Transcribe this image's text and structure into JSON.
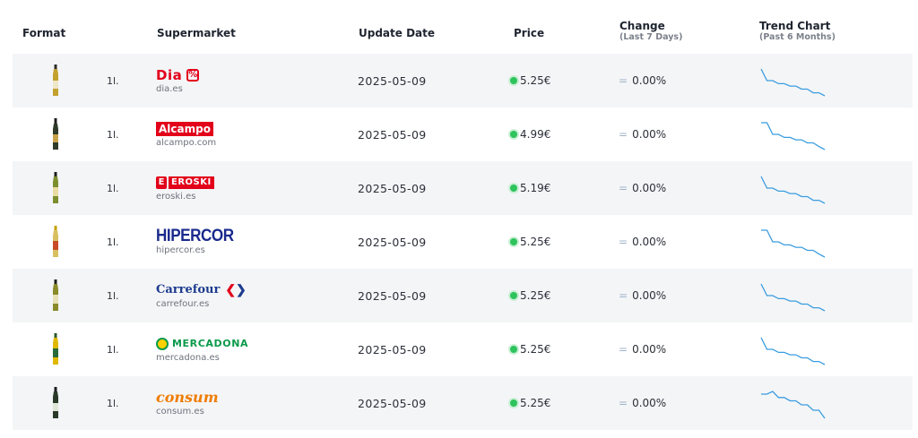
{
  "header": {
    "format": "Format",
    "supermarket": "Supermarket",
    "update_date": "Update Date",
    "price": "Price",
    "change": "Change",
    "change_sub": "(Last 7 Days)",
    "trend": "Trend Chart",
    "trend_sub": "(Past 6 Months)"
  },
  "colors": {
    "price_dot": "#2ec35c",
    "trend_line": "#3a9de0",
    "row_shade": "#f4f5f7"
  },
  "rows": [
    {
      "size": "1l.",
      "logo_text": "Dia",
      "logo_mark": "%",
      "domain": "dia.es",
      "date": "2025-05-09",
      "price": "5.25€",
      "change_icon": "=",
      "change": "0.00%",
      "bottle_color": "#c3a12e",
      "trend": [
        100,
        62,
        62,
        52,
        52,
        44,
        44,
        34,
        34,
        22,
        22,
        12
      ]
    },
    {
      "size": "1l.",
      "logo_text": "Alcampo",
      "domain": "alcampo.com",
      "date": "2025-05-09",
      "price": "4.99€",
      "change_icon": "=",
      "change": "0.00%",
      "bottle_color": "#2f3a2a",
      "trend": [
        100,
        100,
        62,
        62,
        52,
        52,
        44,
        44,
        34,
        34,
        22,
        12
      ]
    },
    {
      "size": "1l.",
      "logo_text": "EROSKI",
      "logo_mark": "E",
      "domain": "eroski.es",
      "date": "2025-05-09",
      "price": "5.19€",
      "change_icon": "=",
      "change": "0.00%",
      "bottle_color": "#7c8e2d",
      "trend": [
        100,
        62,
        62,
        52,
        52,
        44,
        44,
        34,
        34,
        22,
        22,
        12
      ]
    },
    {
      "size": "1l.",
      "logo_text": "HIPERCOR",
      "domain": "hipercor.es",
      "date": "2025-05-09",
      "price": "5.25€",
      "change_icon": "=",
      "change": "0.00%",
      "bottle_color": "#d8c060",
      "trend": [
        100,
        100,
        62,
        62,
        52,
        52,
        44,
        44,
        34,
        34,
        22,
        12
      ]
    },
    {
      "size": "1l.",
      "logo_text": "Carrefour",
      "domain": "carrefour.es",
      "date": "2025-05-09",
      "price": "5.25€",
      "change_icon": "=",
      "change": "0.00%",
      "bottle_color": "#8a8a2a",
      "trend": [
        100,
        62,
        62,
        52,
        52,
        44,
        44,
        34,
        34,
        22,
        22,
        12
      ]
    },
    {
      "size": "1l.",
      "logo_text": "MERCADONA",
      "domain": "mercadona.es",
      "date": "2025-05-09",
      "price": "5.25€",
      "change_icon": "=",
      "change": "0.00%",
      "bottle_color": "#e0b800",
      "trend": [
        100,
        62,
        62,
        52,
        52,
        44,
        44,
        34,
        34,
        22,
        22,
        12
      ]
    },
    {
      "size": "1l.",
      "logo_text": "consum",
      "domain": "consum.es",
      "date": "2025-05-09",
      "price": "5.25€",
      "change_icon": "=",
      "change": "0.00%",
      "bottle_color": "#2a3a28",
      "trend": [
        80,
        80,
        88,
        70,
        70,
        60,
        60,
        48,
        48,
        32,
        32,
        8
      ]
    }
  ]
}
